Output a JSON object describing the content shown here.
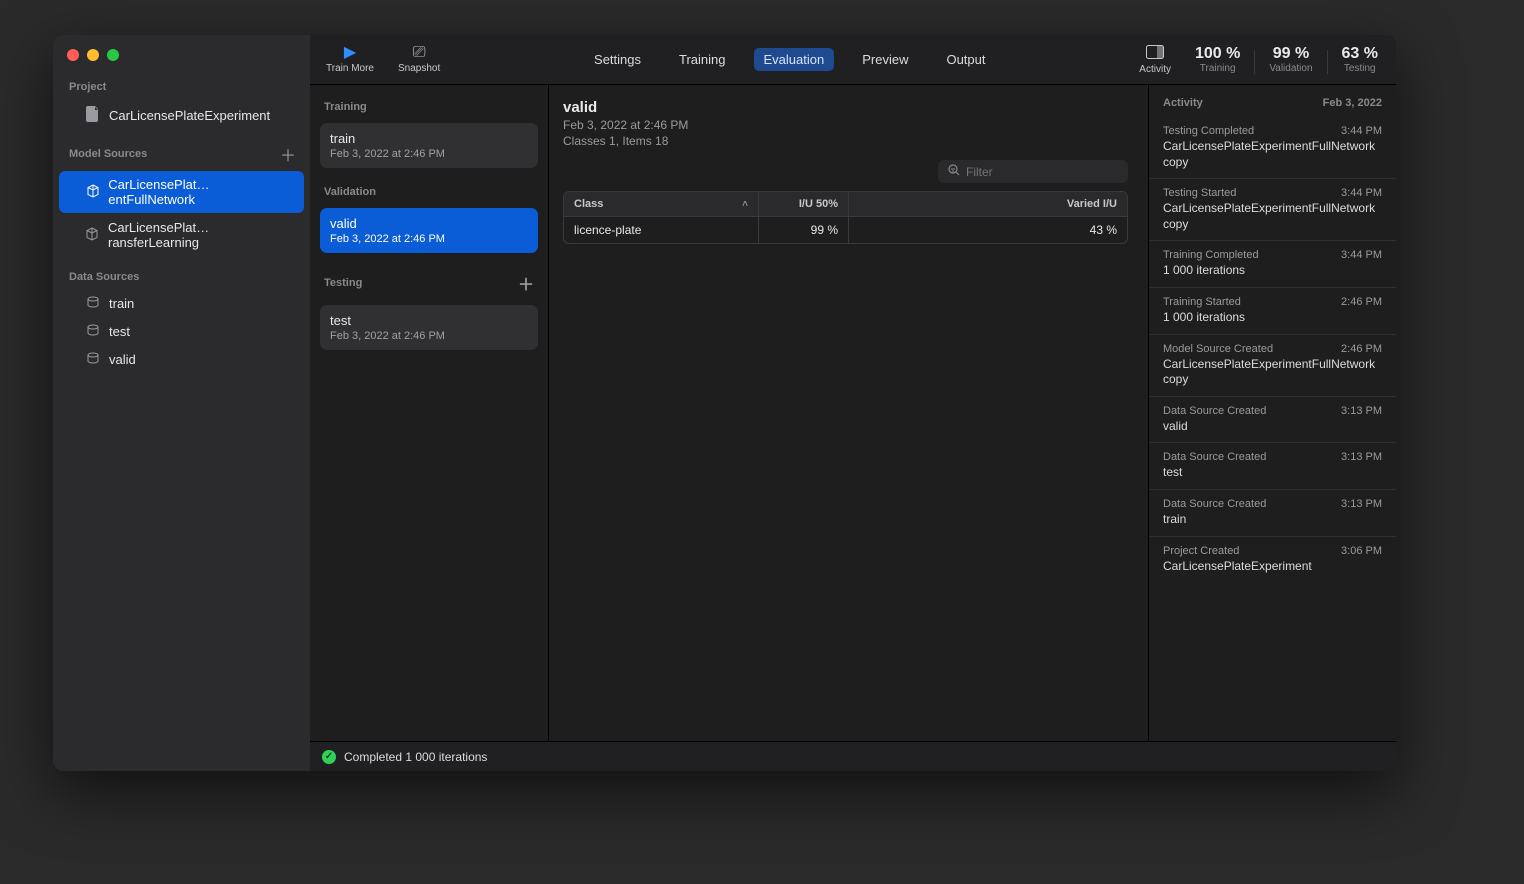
{
  "colors": {
    "accent": "#0a5cd7",
    "bg": "#1e1e1e",
    "sidebar_bg": "#2b2a2d",
    "muted": "#8a8a8e",
    "success": "#30d158"
  },
  "sidebar": {
    "project_header": "Project",
    "project_name": "CarLicensePlateExperiment",
    "model_sources_header": "Model Sources",
    "model_sources": [
      {
        "label": "CarLicensePlat…entFullNetwork",
        "selected": true
      },
      {
        "label": "CarLicensePlat…ransferLearning",
        "selected": false
      }
    ],
    "data_sources_header": "Data Sources",
    "data_sources": [
      {
        "label": "train"
      },
      {
        "label": "test"
      },
      {
        "label": "valid"
      }
    ]
  },
  "toolbar": {
    "train_more": "Train More",
    "snapshot": "Snapshot",
    "tabs": [
      "Settings",
      "Training",
      "Evaluation",
      "Preview",
      "Output"
    ],
    "active_tab": "Evaluation",
    "activity_label": "Activity",
    "metrics": [
      {
        "val": "100 %",
        "lbl": "Training"
      },
      {
        "val": "99 %",
        "lbl": "Validation"
      },
      {
        "val": "63 %",
        "lbl": "Testing"
      }
    ]
  },
  "snapshots": {
    "training_header": "Training",
    "training": [
      {
        "name": "train",
        "date": "Feb 3, 2022 at 2:46 PM",
        "selected": false
      }
    ],
    "validation_header": "Validation",
    "validation": [
      {
        "name": "valid",
        "date": "Feb 3, 2022 at 2:46 PM",
        "selected": true
      }
    ],
    "testing_header": "Testing",
    "testing": [
      {
        "name": "test",
        "date": "Feb 3, 2022 at 2:46 PM",
        "selected": false
      }
    ]
  },
  "detail": {
    "title": "valid",
    "timestamp": "Feb 3, 2022 at 2:46 PM",
    "summary": "Classes 1, Items 18",
    "filter_placeholder": "Filter",
    "columns": {
      "class": "Class",
      "iu50": "I/U 50%",
      "varied": "Varied I/U"
    },
    "rows": [
      {
        "class": "licence-plate",
        "iu50": "99 %",
        "varied": "43 %"
      }
    ]
  },
  "activity_panel": {
    "header": "Activity",
    "date": "Feb 3, 2022",
    "items": [
      {
        "title": "Testing Completed",
        "time": "3:44 PM",
        "detail": "CarLicensePlateExperimentFullNetwork copy"
      },
      {
        "title": "Testing Started",
        "time": "3:44 PM",
        "detail": "CarLicensePlateExperimentFullNetwork copy"
      },
      {
        "title": "Training Completed",
        "time": "3:44 PM",
        "detail": "1 000 iterations"
      },
      {
        "title": "Training Started",
        "time": "2:46 PM",
        "detail": "1 000 iterations"
      },
      {
        "title": "Model Source Created",
        "time": "2:46 PM",
        "detail": "CarLicensePlateExperimentFullNetwork copy"
      },
      {
        "title": "Data Source Created",
        "time": "3:13 PM",
        "detail": "valid"
      },
      {
        "title": "Data Source Created",
        "time": "3:13 PM",
        "detail": "test"
      },
      {
        "title": "Data Source Created",
        "time": "3:13 PM",
        "detail": "train"
      },
      {
        "title": "Project Created",
        "time": "3:06 PM",
        "detail": "CarLicensePlateExperiment"
      }
    ]
  },
  "statusbar": {
    "text": "Completed 1 000 iterations"
  }
}
